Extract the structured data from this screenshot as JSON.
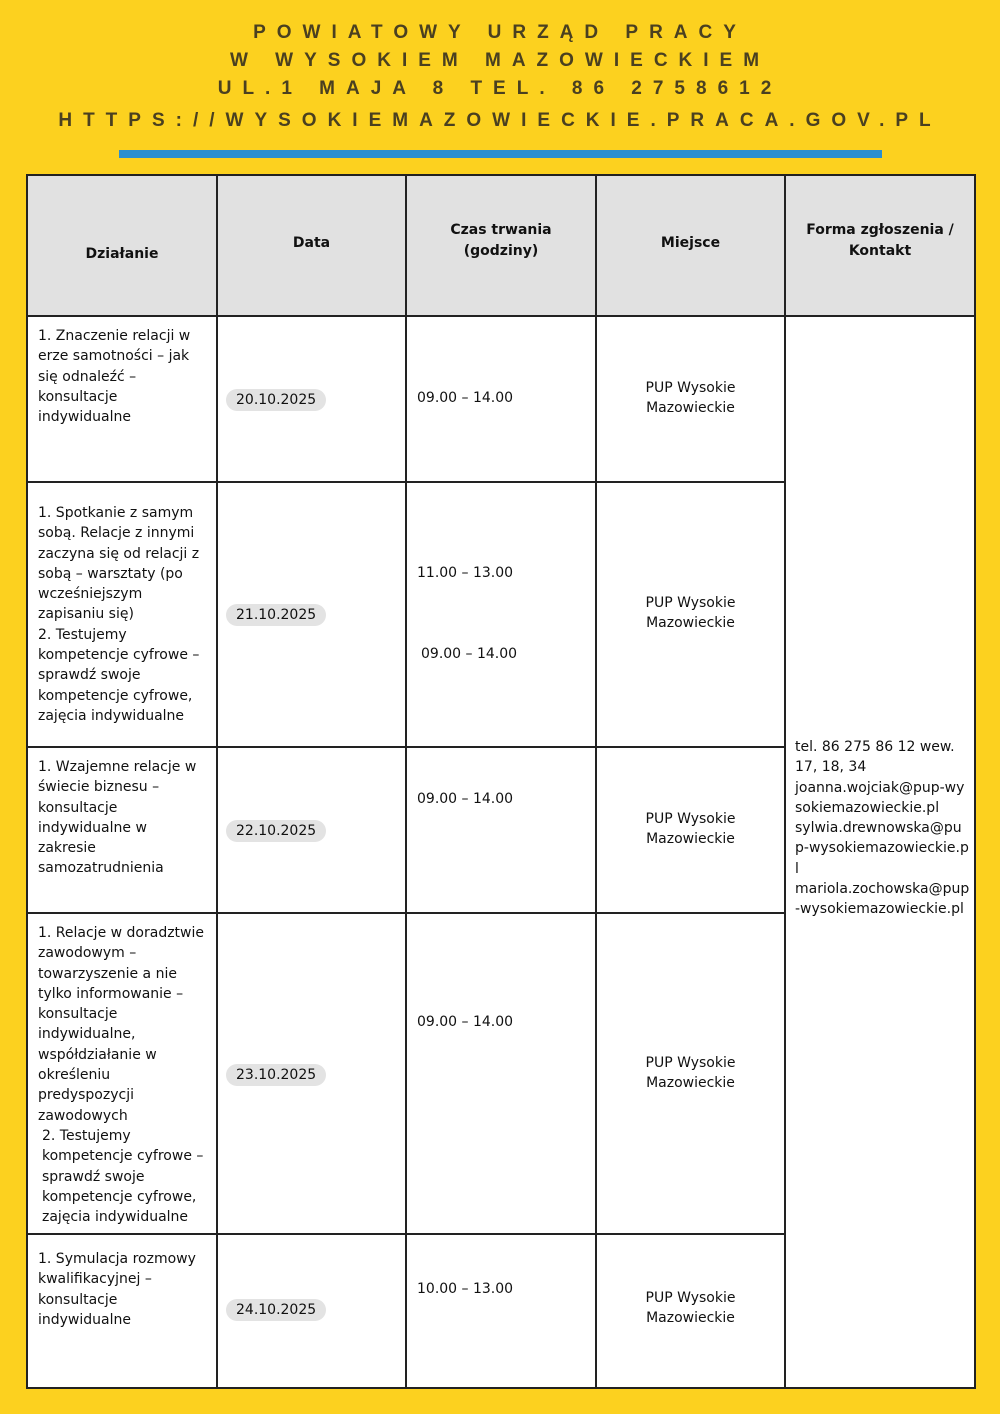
{
  "header": {
    "line1": "POWIATOWY URZĄD PRACY",
    "line2": "W WYSOKIEM MAZOWIECKIEM",
    "line3": "UL.1 MAJA 8 TEL. 86 2758612",
    "line4": "HTTPS://WYSOKIEMAZOWIECKIE.PRACA.GOV.PL"
  },
  "colors": {
    "background": "#fcd11f",
    "accent_bar": "#2b8fcf",
    "header_row": "#e1e1e1"
  },
  "table": {
    "columns": [
      "Działanie",
      "Data",
      "Czas trwania (godziny)",
      "Miejsce",
      "Forma zgłoszenia / Kontakt"
    ],
    "contact": [
      "tel. 86 275 86 12 wew. 17, 18, 34",
      "joanna.wojciak@pup-wysokiemazowieckie.pl",
      "sylwia.drewnowska@pup-wysokiemazowieckie.pl",
      "mariola.zochowska@pup-wysokiemazowieckie.pl"
    ],
    "rows": [
      {
        "activity": [
          "1. Znaczenie relacji w erze samotności – jak się odnaleźć – konsultacje indywidualne"
        ],
        "date": "20.10.2025",
        "times": [
          "09.00 – 14.00"
        ],
        "place": "PUP Wysokie Mazowieckie"
      },
      {
        "activity": [
          "1. Spotkanie z samym sobą. Relacje z innymi zaczyna się od relacji z sobą – warsztaty (po wcześniejszym zapisaniu się)",
          "2. Testujemy kompetencje cyfrowe – sprawdź swoje kompetencje cyfrowe, zajęcia indywidualne"
        ],
        "date": "21.10.2025",
        "times": [
          "11.00 – 13.00",
          "09.00 – 14.00"
        ],
        "place": "PUP Wysokie Mazowieckie"
      },
      {
        "activity": [
          "1. Wzajemne relacje w świecie biznesu – konsultacje indywidualne w zakresie samozatrudnienia"
        ],
        "date": "22.10.2025",
        "times": [
          "09.00 – 14.00"
        ],
        "place": "PUP Wysokie Mazowieckie"
      },
      {
        "activity": [
          "1. Relacje w doradztwie zawodowym – towarzyszenie a nie tylko informowanie – konsultacje indywidualne, współdziałanie w określeniu predyspozycji zawodowych",
          "2. Testujemy kompetencje cyfrowe – sprawdź swoje kompetencje cyfrowe, zajęcia indywidualne"
        ],
        "date": "23.10.2025",
        "times": [
          "09.00 – 14.00"
        ],
        "place": "PUP Wysokie Mazowieckie"
      },
      {
        "activity": [
          "1. Symulacja rozmowy kwalifikacyjnej – konsultacje indywidualne"
        ],
        "date": "24.10.2025",
        "times": [
          "10.00 – 13.00"
        ],
        "place": "PUP Wysokie Mazowieckie"
      }
    ]
  }
}
